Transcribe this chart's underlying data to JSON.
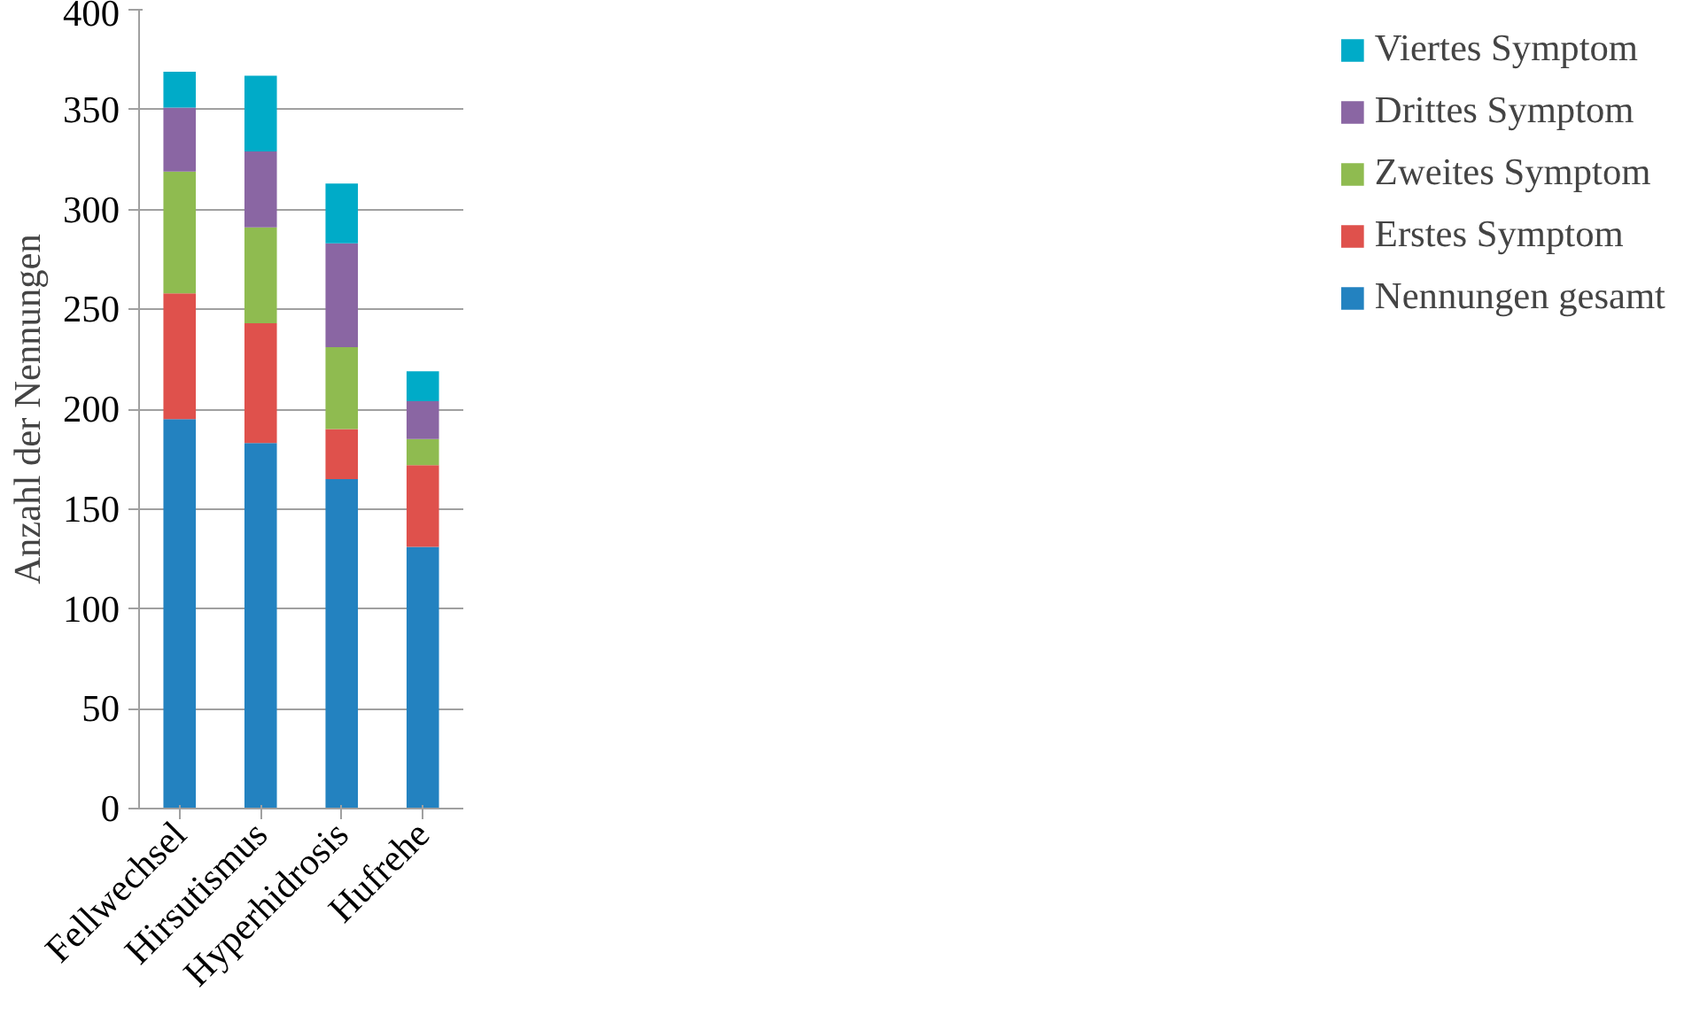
{
  "chart_data": {
    "type": "bar",
    "stacked": true,
    "ylabel": "Anzahl der Nennungen",
    "categories": [
      "Fellwechsel",
      "Hirsutismus",
      "Hyperhidrosis",
      "Hufrehe"
    ],
    "series": [
      {
        "name": "Nennungen gesamt",
        "color": "#2382c0",
        "values": [
          195,
          183,
          165,
          131
        ]
      },
      {
        "name": "Erstes Symptom",
        "color": "#df514c",
        "values": [
          63,
          60,
          25,
          41
        ]
      },
      {
        "name": "Zweites Symptom",
        "color": "#8fbb50",
        "values": [
          61,
          48,
          41,
          13
        ]
      },
      {
        "name": "Drittes Symptom",
        "color": "#8a66a3",
        "values": [
          32,
          38,
          52,
          19
        ]
      },
      {
        "name": "Viertes Symptom",
        "color": "#00abc8",
        "values": [
          18,
          38,
          30,
          15
        ]
      }
    ],
    "ylim": [
      0,
      400
    ],
    "yticks": [
      0,
      50,
      100,
      150,
      200,
      250,
      300,
      350,
      400
    ],
    "grid": "y",
    "legend": "right"
  }
}
